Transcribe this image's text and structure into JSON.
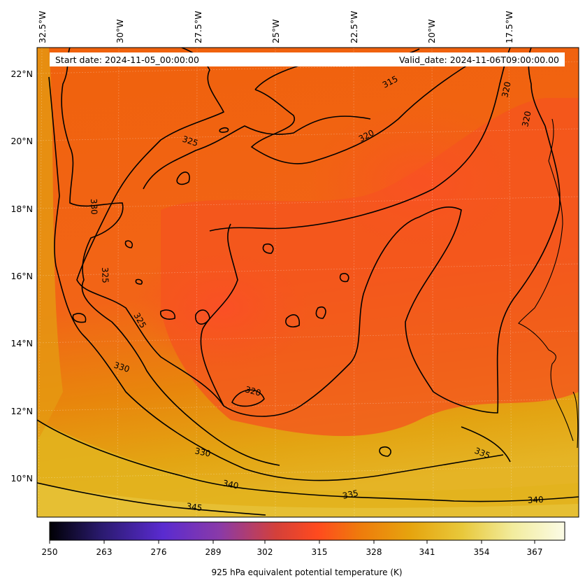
{
  "header": {
    "start_date": "Start date: 2024-11-05_00:00:00",
    "valid_date": "Valid_date: 2024-11-06T09:00:00.00"
  },
  "map": {
    "longitude_labels": [
      "32.5°W",
      "30°W",
      "27.5°W",
      "25°W",
      "22.5°W",
      "20°W",
      "17.5°W"
    ],
    "latitude_labels": [
      "22°N",
      "20°N",
      "18°N",
      "16°N",
      "14°N",
      "12°N",
      "10°N"
    ],
    "contour_labels": [
      "315",
      "320",
      "320",
      "320",
      "325",
      "325",
      "325",
      "320",
      "330",
      "330",
      "330",
      "340",
      "345",
      "335",
      "335",
      "340"
    ]
  },
  "colorbar": {
    "label": "925 hPa equivalent potential temperature (K)",
    "ticks": [
      "250",
      "263",
      "276",
      "289",
      "302",
      "315",
      "328",
      "341",
      "354",
      "367"
    ],
    "colors": [
      "#000004",
      "#2a1a6e",
      "#5a2bd0",
      "#8a3aa8",
      "#d4403a",
      "#ff4a1e",
      "#ef7a0c",
      "#e6a40e",
      "#e8c83a",
      "#f2ec9e",
      "#fbfbe6"
    ]
  }
}
